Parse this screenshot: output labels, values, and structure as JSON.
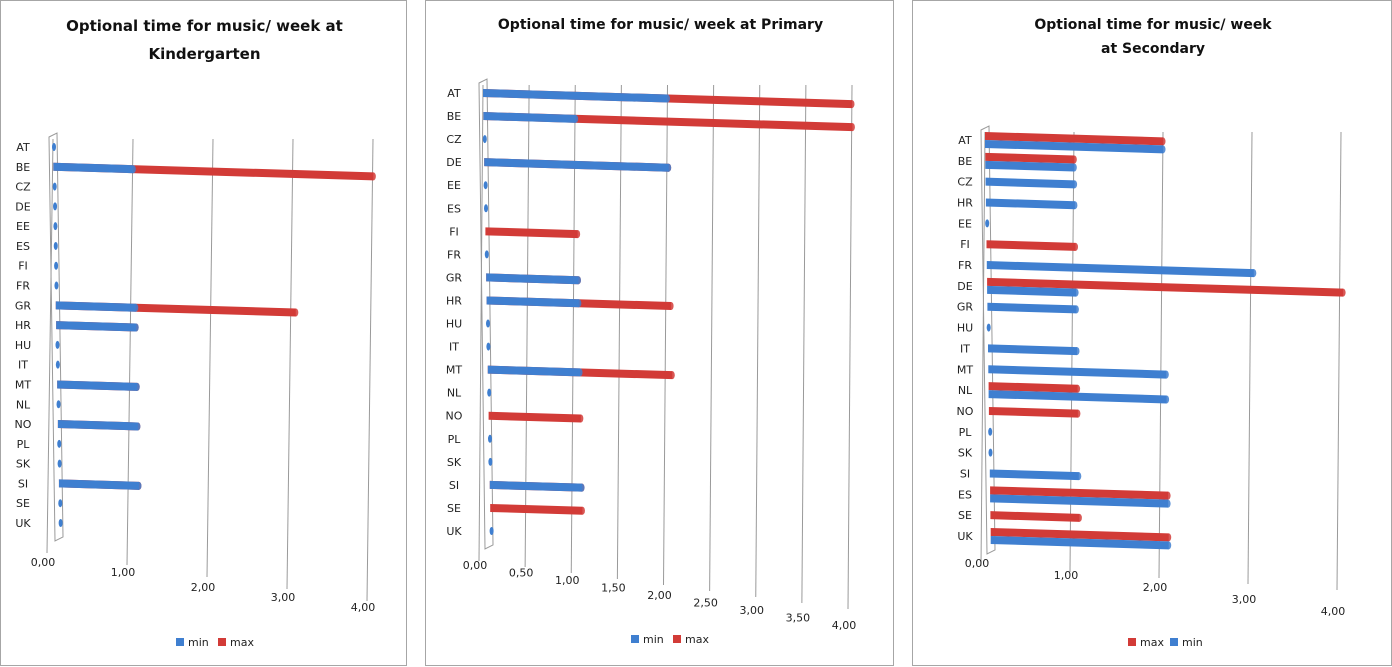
{
  "colors": {
    "min": "#3f7fd0",
    "max": "#d23b37",
    "grid": "#9a9a9a"
  },
  "chart_data": [
    {
      "type": "bar",
      "title": [
        "Optional time for music/ week at",
        "Kindergarten"
      ],
      "categories": [
        "AT",
        "BE",
        "CZ",
        "DE",
        "EE",
        "ES",
        "FI",
        "FR",
        "GR",
        "HR",
        "HU",
        "IT",
        "MT",
        "NL",
        "NO",
        "PL",
        "SK",
        "SI",
        "SE",
        "UK"
      ],
      "series": [
        {
          "name": "min",
          "values": [
            0,
            1,
            0,
            0,
            0,
            0,
            0,
            0,
            1,
            1,
            0,
            0,
            1,
            0,
            1,
            0,
            0,
            1,
            0,
            0
          ]
        },
        {
          "name": "max",
          "values": [
            0,
            4,
            0,
            0,
            0,
            0,
            0,
            0,
            3,
            1,
            0,
            0,
            1,
            0,
            1,
            0,
            0,
            1,
            0,
            0
          ]
        }
      ],
      "ticks": [
        "0,00",
        "1,00",
        "2,00",
        "3,00",
        "4,00"
      ],
      "xlim": [
        0,
        4
      ],
      "stacked_view": "min overlaid on max",
      "legend": [
        "min",
        "max"
      ],
      "legend_position": "bottom"
    },
    {
      "type": "bar",
      "title": [
        "Optional time for music/ week at Primary"
      ],
      "categories": [
        "AT",
        "BE",
        "CZ",
        "DE",
        "EE",
        "ES",
        "FI",
        "FR",
        "GR",
        "HR",
        "HU",
        "IT",
        "MT",
        "NL",
        "NO",
        "PL",
        "SK",
        "SI",
        "SE",
        "UK"
      ],
      "series": [
        {
          "name": "min",
          "values": [
            2,
            1,
            0,
            2,
            0,
            0,
            0,
            0,
            1,
            1,
            0,
            0,
            1,
            0,
            0,
            0,
            0,
            1,
            0,
            0
          ]
        },
        {
          "name": "max",
          "values": [
            4,
            4,
            0,
            2,
            0,
            0,
            1,
            0,
            1,
            2,
            0,
            0,
            2,
            0,
            1,
            0,
            0,
            1,
            1,
            0
          ]
        }
      ],
      "ticks": [
        "0,00",
        "0,50",
        "1,00",
        "1,50",
        "2,00",
        "2,50",
        "3,00",
        "3,50",
        "4,00"
      ],
      "xlim": [
        0,
        4
      ],
      "legend": [
        "min",
        "max"
      ],
      "legend_position": "bottom"
    },
    {
      "type": "bar",
      "title": [
        "Optional time for music/ week",
        "at Secondary"
      ],
      "categories": [
        "AT",
        "BE",
        "CZ",
        "HR",
        "EE",
        "FI",
        "FR",
        "DE",
        "GR",
        "HU",
        "IT",
        "MT",
        "NL",
        "NO",
        "PL",
        "SK",
        "SI",
        "ES",
        "SE",
        "UK"
      ],
      "series": [
        {
          "name": "max",
          "values": [
            2,
            1,
            0,
            0,
            0,
            1,
            0,
            4,
            0,
            0,
            0,
            0,
            1,
            1,
            0,
            0,
            0,
            2,
            1,
            2
          ]
        },
        {
          "name": "min",
          "values": [
            2,
            1,
            1,
            1,
            0,
            0,
            3,
            1,
            1,
            0,
            1,
            2,
            2,
            0,
            0,
            0,
            1,
            2,
            0,
            2
          ]
        }
      ],
      "ticks": [
        "0,00",
        "1,00",
        "2,00",
        "3,00",
        "4,00"
      ],
      "xlim": [
        0,
        4
      ],
      "legend": [
        "max",
        "min"
      ],
      "legend_position": "bottom"
    }
  ]
}
